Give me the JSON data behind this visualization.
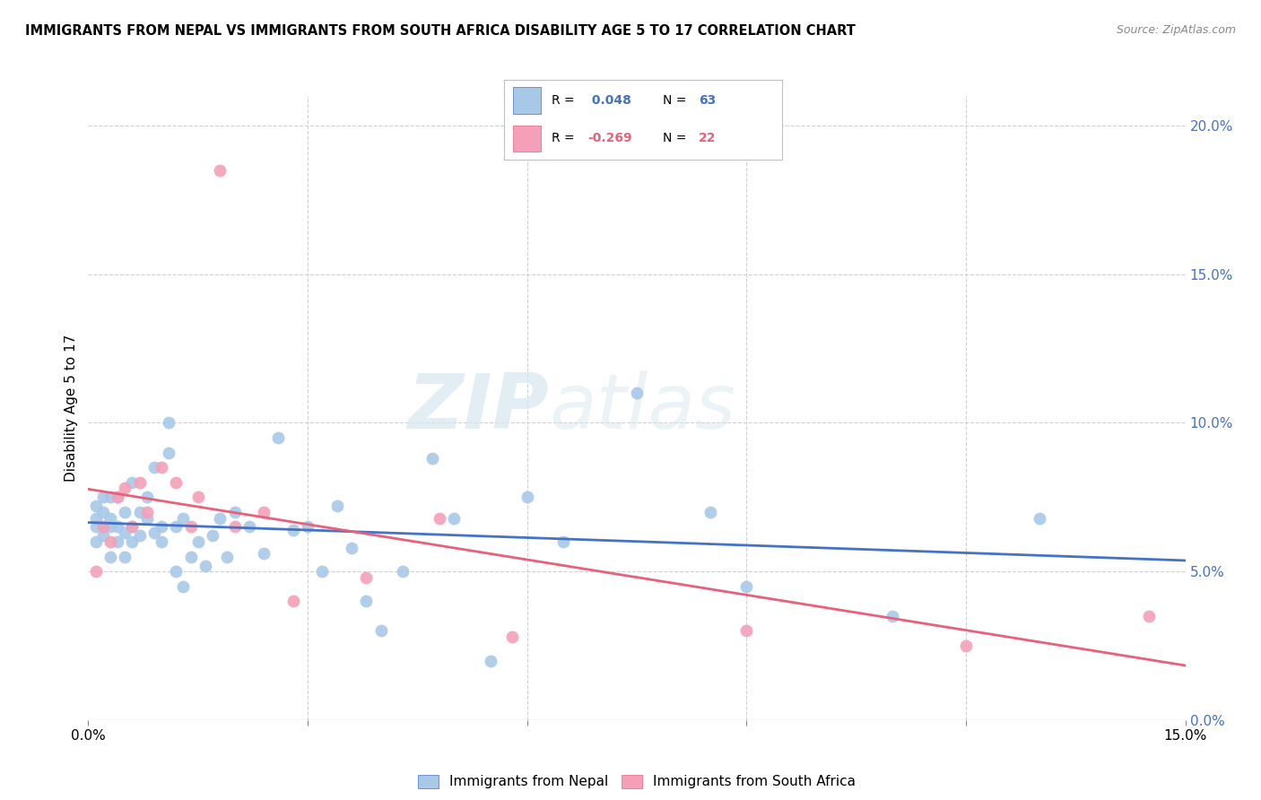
{
  "title": "IMMIGRANTS FROM NEPAL VS IMMIGRANTS FROM SOUTH AFRICA DISABILITY AGE 5 TO 17 CORRELATION CHART",
  "source": "Source: ZipAtlas.com",
  "ylabel": "Disability Age 5 to 17",
  "xlim": [
    0.0,
    0.15
  ],
  "ylim": [
    0.0,
    0.21
  ],
  "yticks": [
    0.0,
    0.05,
    0.1,
    0.15,
    0.2
  ],
  "xticks": [
    0.0,
    0.03,
    0.06,
    0.09,
    0.12,
    0.15
  ],
  "nepal_R": 0.048,
  "nepal_N": 63,
  "sa_R": -0.269,
  "sa_N": 22,
  "nepal_color": "#a8c8e8",
  "sa_color": "#f4a0b8",
  "nepal_line_color": "#4472c4",
  "sa_line_color": "#e8607a",
  "nepal_x": [
    0.001,
    0.001,
    0.001,
    0.001,
    0.002,
    0.002,
    0.002,
    0.002,
    0.003,
    0.003,
    0.003,
    0.003,
    0.004,
    0.004,
    0.004,
    0.005,
    0.005,
    0.005,
    0.006,
    0.006,
    0.006,
    0.007,
    0.007,
    0.008,
    0.008,
    0.009,
    0.009,
    0.01,
    0.01,
    0.011,
    0.011,
    0.012,
    0.012,
    0.013,
    0.013,
    0.014,
    0.015,
    0.016,
    0.017,
    0.018,
    0.019,
    0.02,
    0.022,
    0.024,
    0.026,
    0.028,
    0.03,
    0.032,
    0.034,
    0.036,
    0.038,
    0.04,
    0.043,
    0.047,
    0.05,
    0.055,
    0.06,
    0.065,
    0.075,
    0.085,
    0.09,
    0.11,
    0.13
  ],
  "nepal_y": [
    0.065,
    0.068,
    0.06,
    0.072,
    0.065,
    0.07,
    0.075,
    0.062,
    0.065,
    0.075,
    0.055,
    0.068,
    0.06,
    0.065,
    0.075,
    0.063,
    0.07,
    0.055,
    0.065,
    0.06,
    0.08,
    0.062,
    0.07,
    0.068,
    0.075,
    0.063,
    0.085,
    0.065,
    0.06,
    0.09,
    0.1,
    0.065,
    0.05,
    0.068,
    0.045,
    0.055,
    0.06,
    0.052,
    0.062,
    0.068,
    0.055,
    0.07,
    0.065,
    0.056,
    0.095,
    0.064,
    0.065,
    0.05,
    0.072,
    0.058,
    0.04,
    0.03,
    0.05,
    0.088,
    0.068,
    0.02,
    0.075,
    0.06,
    0.11,
    0.07,
    0.045,
    0.035,
    0.068
  ],
  "sa_x": [
    0.001,
    0.002,
    0.003,
    0.004,
    0.005,
    0.006,
    0.007,
    0.008,
    0.01,
    0.012,
    0.014,
    0.015,
    0.018,
    0.02,
    0.024,
    0.028,
    0.038,
    0.048,
    0.058,
    0.09,
    0.12,
    0.145
  ],
  "sa_y": [
    0.05,
    0.065,
    0.06,
    0.075,
    0.078,
    0.065,
    0.08,
    0.07,
    0.085,
    0.08,
    0.065,
    0.075,
    0.185,
    0.065,
    0.07,
    0.04,
    0.048,
    0.068,
    0.028,
    0.03,
    0.025,
    0.035
  ],
  "watermark_zip": "ZIP",
  "watermark_atlas": "atlas",
  "legend_nepal_label": "Immigrants from Nepal",
  "legend_sa_label": "Immigrants from South Africa"
}
